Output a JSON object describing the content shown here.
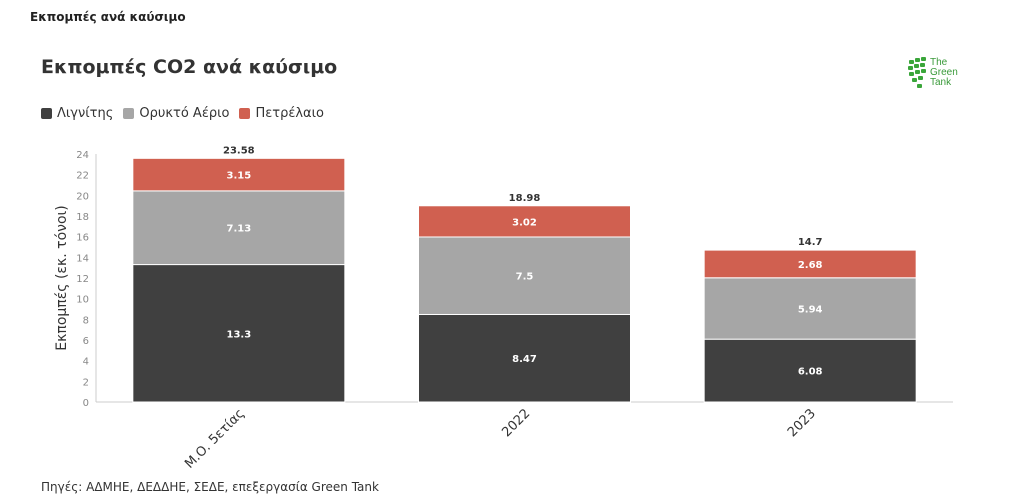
{
  "page": {
    "header": "Εκπομπές ανά καύσιμο",
    "source": "Πηγές: ΑΔΜΗΕ, ΔΕΔΔΗΕ, ΣΕΔΕ, επεξεργασία Green Tank"
  },
  "logo": {
    "line1": "The",
    "line2": "Green",
    "line3": "Tank",
    "color": "#3aa63a"
  },
  "chart_data": {
    "type": "bar",
    "stacked": true,
    "title": "Εκπομπές CO2 ανά καύσιμο",
    "ylabel": "Εκπομπές (εκ. τόνοι)",
    "xlabel": "",
    "ylim": [
      0,
      24
    ],
    "yticks": [
      0,
      2,
      4,
      6,
      8,
      10,
      12,
      14,
      16,
      18,
      20,
      22,
      24
    ],
    "grid": false,
    "legend_position": "top-left",
    "categories": [
      "Μ.Ο. 5ετίας",
      "2022",
      "2023"
    ],
    "totals": [
      "23.58",
      "18.98",
      "14.7"
    ],
    "series": [
      {
        "name": "Λιγνίτης",
        "color": "#404040",
        "values": [
          13.3,
          8.47,
          6.08
        ],
        "labels": [
          "13.3",
          "8.47",
          "6.08"
        ]
      },
      {
        "name": "Ορυκτό Αέριο",
        "color": "#a6a6a6",
        "values": [
          7.13,
          7.5,
          5.94
        ],
        "labels": [
          "7.13",
          "7.5",
          "5.94"
        ]
      },
      {
        "name": "Πετρέλαιο",
        "color": "#d06050",
        "values": [
          3.15,
          3.02,
          2.68
        ],
        "labels": [
          "3.15",
          "3.02",
          "2.68"
        ]
      }
    ]
  }
}
